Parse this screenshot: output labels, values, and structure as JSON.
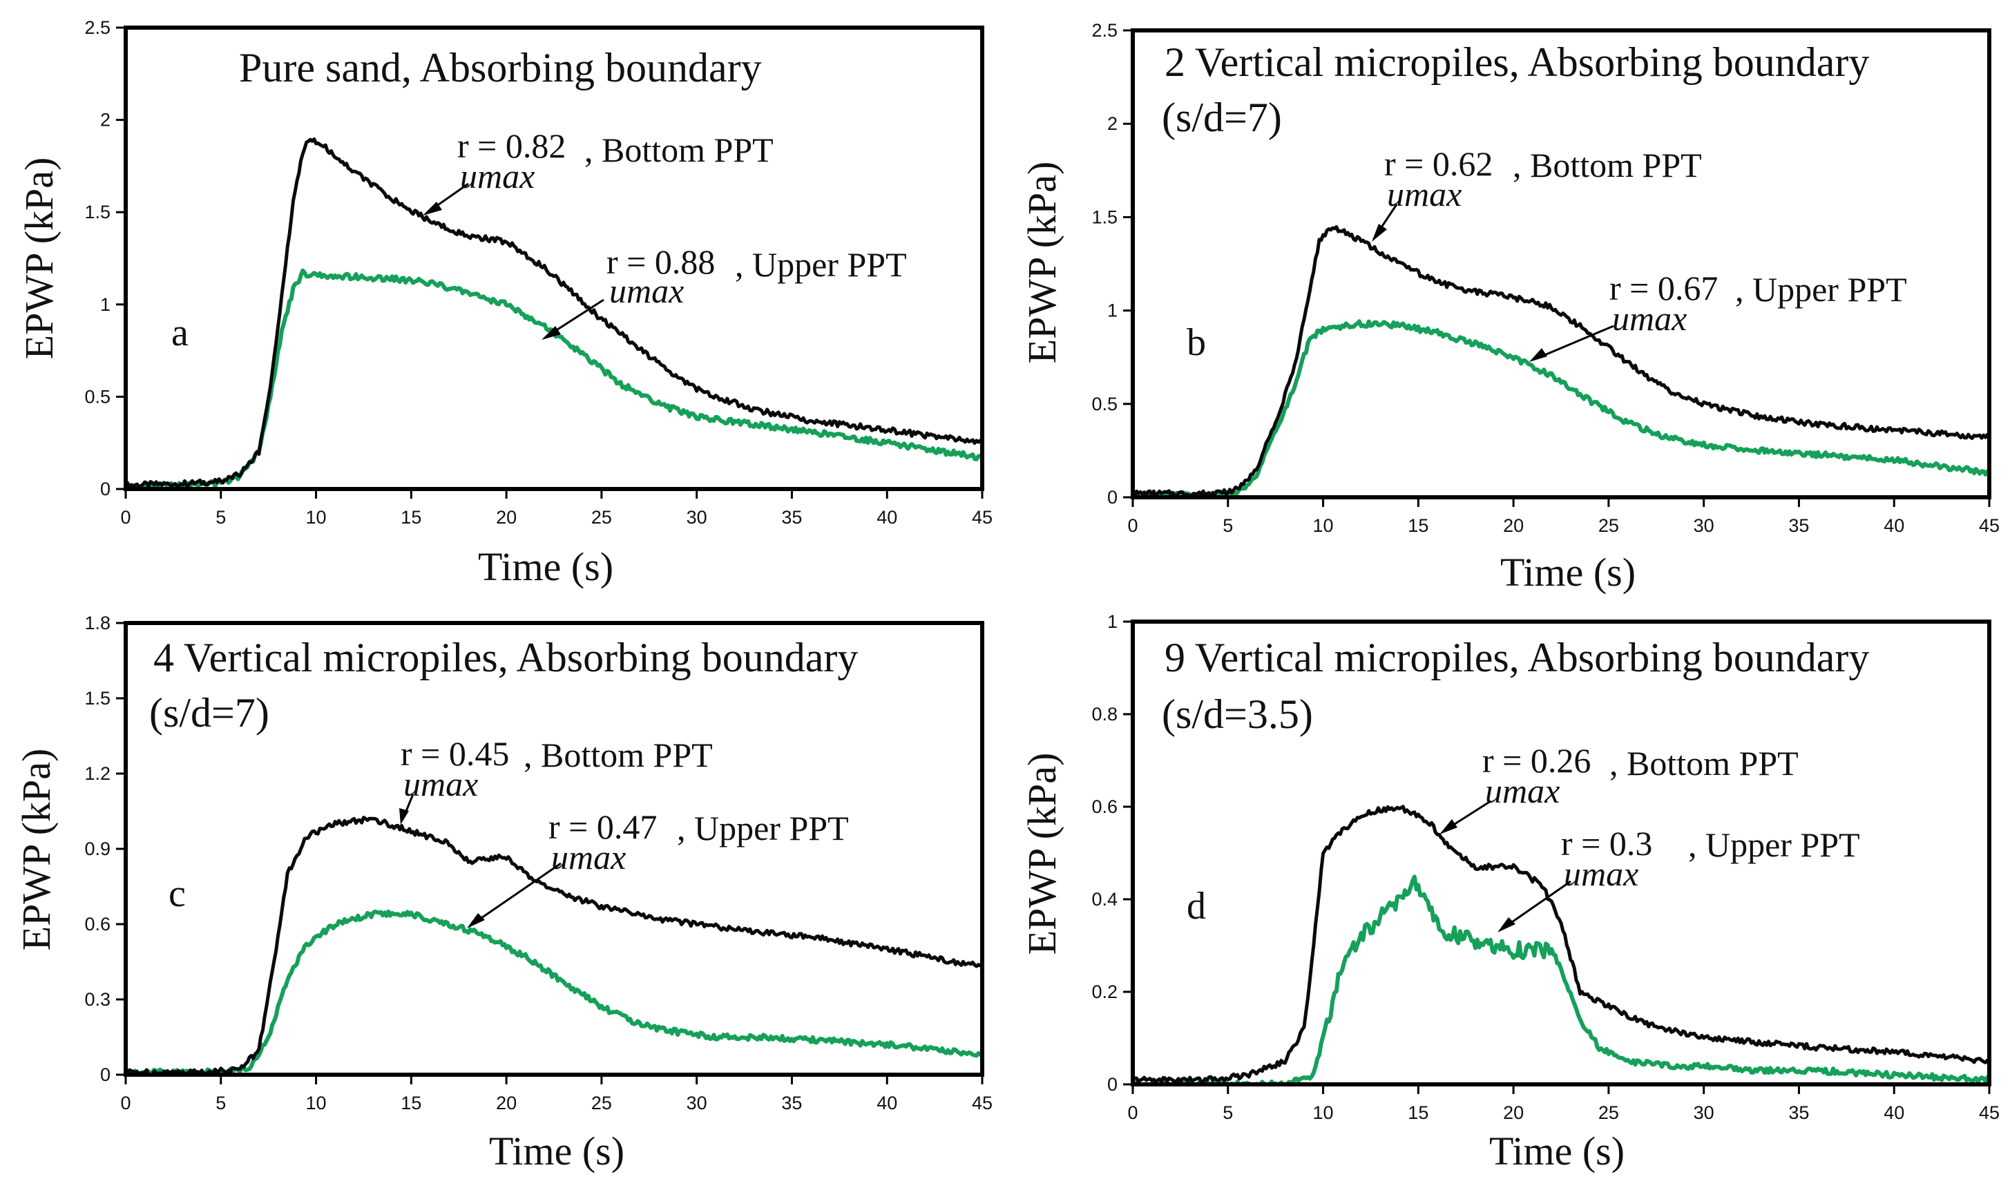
{
  "colors": {
    "bottom_ppt": "#0a0a0a",
    "upper_ppt": "#16a05a",
    "frame": "#000000"
  },
  "chart_data": [
    {
      "id": "a",
      "type": "line",
      "title": "Pure sand, Absorbing boundary",
      "subtitle": "",
      "panel_label": "a",
      "xlabel": "Time (s)",
      "ylabel": "EPWP (kPa)",
      "xlim": [
        0,
        45
      ],
      "ylim": [
        0,
        2.5
      ],
      "xticks": [
        0,
        5,
        10,
        15,
        20,
        25,
        30,
        35,
        40,
        45
      ],
      "yticks": [
        0,
        0.5,
        1,
        1.5,
        2,
        2.5
      ],
      "ytick_labels": [
        "0",
        "0.5",
        "1",
        "1.5",
        "2",
        "2.5"
      ],
      "series": [
        {
          "name": "Bottom PPT",
          "color": "#0a0a0a",
          "x": [
            0,
            3,
            5,
            6,
            7,
            7.6,
            8.2,
            8.8,
            9.3,
            9.7,
            10.5,
            12,
            14,
            16,
            18,
            20,
            22,
            25,
            28,
            30,
            33,
            36,
            40,
            45
          ],
          "y": [
            0.02,
            0.03,
            0.04,
            0.08,
            0.2,
            0.55,
            1.05,
            1.55,
            1.83,
            1.9,
            1.85,
            1.72,
            1.57,
            1.45,
            1.37,
            1.34,
            1.2,
            0.92,
            0.68,
            0.54,
            0.43,
            0.37,
            0.32,
            0.25
          ]
        },
        {
          "name": "Upper PPT",
          "color": "#16a05a",
          "x": [
            0,
            3,
            5,
            6,
            7,
            7.6,
            8.2,
            8.8,
            9.3,
            10,
            12,
            14,
            16,
            18,
            20,
            22,
            24,
            26,
            28,
            30,
            33,
            36,
            40,
            45
          ],
          "y": [
            0.01,
            0.02,
            0.03,
            0.07,
            0.2,
            0.5,
            0.85,
            1.08,
            1.17,
            1.16,
            1.15,
            1.14,
            1.12,
            1.06,
            1.0,
            0.88,
            0.73,
            0.57,
            0.46,
            0.39,
            0.35,
            0.31,
            0.25,
            0.17
          ]
        }
      ],
      "annotations": [
        {
          "value": "r = 0.82",
          "sub": "umax",
          "suffix": ", Bottom PPT"
        },
        {
          "value": "r = 0.88",
          "sub": "umax",
          "suffix": ", Upper PPT"
        }
      ]
    },
    {
      "id": "b",
      "type": "line",
      "title": "2 Vertical micropiles, Absorbing boundary",
      "subtitle": "(s/d=7)",
      "panel_label": "b",
      "xlabel": "Time (s)",
      "ylabel": "EPWP (kPa)",
      "xlim": [
        0,
        45
      ],
      "ylim": [
        0,
        2.5
      ],
      "xticks": [
        0,
        5,
        10,
        15,
        20,
        25,
        30,
        35,
        40,
        45
      ],
      "yticks": [
        0,
        0.5,
        1,
        1.5,
        2,
        2.5
      ],
      "ytick_labels": [
        "0",
        "0.5",
        "1",
        "1.5",
        "2",
        "2.5"
      ],
      "series": [
        {
          "name": "Bottom PPT",
          "color": "#0a0a0a",
          "x": [
            0,
            4,
            5.5,
            6.5,
            7.5,
            8.5,
            9.3,
            9.8,
            10.5,
            12,
            14,
            16,
            18,
            20,
            22,
            24,
            26,
            28,
            30,
            33,
            36,
            40,
            45
          ],
          "y": [
            0.02,
            0.02,
            0.04,
            0.15,
            0.4,
            0.7,
            1.1,
            1.38,
            1.45,
            1.37,
            1.25,
            1.15,
            1.1,
            1.07,
            1.02,
            0.88,
            0.72,
            0.58,
            0.5,
            0.43,
            0.39,
            0.36,
            0.32
          ]
        },
        {
          "name": "Upper PPT",
          "color": "#16a05a",
          "x": [
            0,
            4,
            5.5,
            6.5,
            7.5,
            8.5,
            9.3,
            10,
            12,
            14,
            16,
            18,
            20,
            22,
            24,
            26,
            28,
            30,
            33,
            36,
            40,
            45
          ],
          "y": [
            0.01,
            0.01,
            0.02,
            0.12,
            0.35,
            0.6,
            0.85,
            0.9,
            0.93,
            0.92,
            0.88,
            0.82,
            0.75,
            0.65,
            0.52,
            0.4,
            0.32,
            0.28,
            0.25,
            0.23,
            0.2,
            0.13
          ]
        }
      ],
      "annotations": [
        {
          "value": "r = 0.62",
          "sub": "umax",
          "suffix": ", Bottom PPT"
        },
        {
          "value": "r = 0.67",
          "sub": "umax",
          "suffix": ", Upper PPT"
        }
      ]
    },
    {
      "id": "c",
      "type": "line",
      "title": "4 Vertical micropiles, Absorbing boundary",
      "subtitle": "(s/d=7)",
      "panel_label": "c",
      "xlabel": "Time (s)",
      "ylabel": "EPWP (kPa)",
      "xlim": [
        0,
        45
      ],
      "ylim": [
        0,
        1.8
      ],
      "xticks": [
        0,
        5,
        10,
        15,
        20,
        25,
        30,
        35,
        40,
        45
      ],
      "yticks": [
        0,
        0.3,
        0.6,
        0.9,
        1.2,
        1.5,
        1.8
      ],
      "ytick_labels": [
        "0",
        "0.3",
        "0.6",
        "0.9",
        "1.2",
        "1.5",
        "1.8"
      ],
      "series": [
        {
          "name": "Bottom PPT",
          "color": "#0a0a0a",
          "x": [
            0,
            4,
            6,
            7,
            7.8,
            8.5,
            9.5,
            11,
            13,
            15,
            17,
            18,
            20,
            21,
            23,
            25,
            28,
            30,
            33,
            36,
            40,
            45
          ],
          "y": [
            0.01,
            0.01,
            0.02,
            0.1,
            0.45,
            0.8,
            0.95,
            1.0,
            1.02,
            0.97,
            0.92,
            0.85,
            0.87,
            0.8,
            0.72,
            0.67,
            0.62,
            0.6,
            0.57,
            0.55,
            0.5,
            0.43
          ]
        },
        {
          "name": "Upper PPT",
          "color": "#16a05a",
          "x": [
            0,
            5,
            6.5,
            7.5,
            8.5,
            9.5,
            11,
            13,
            15,
            17,
            19,
            21,
            23,
            25,
            27,
            29,
            31,
            33,
            36,
            40,
            45
          ],
          "y": [
            0.01,
            0.01,
            0.02,
            0.15,
            0.38,
            0.52,
            0.6,
            0.64,
            0.64,
            0.6,
            0.55,
            0.47,
            0.37,
            0.27,
            0.2,
            0.17,
            0.15,
            0.15,
            0.14,
            0.12,
            0.08
          ]
        }
      ],
      "annotations": [
        {
          "value": "r = 0.45",
          "sub": "umax",
          "suffix": ", Bottom PPT"
        },
        {
          "value": "r = 0.47",
          "sub": "umax",
          "suffix": ", Upper PPT"
        }
      ]
    },
    {
      "id": "d",
      "type": "line",
      "title": "9 Vertical micropiles, Absorbing boundary",
      "subtitle": "(s/d=3.5)",
      "panel_label": "d",
      "xlabel": "Time (s)",
      "ylabel": "EPWP (kPa)",
      "xlim": [
        0,
        45
      ],
      "ylim": [
        0,
        1
      ],
      "xticks": [
        0,
        5,
        10,
        15,
        20,
        25,
        30,
        35,
        40,
        45
      ],
      "yticks": [
        0,
        0.2,
        0.4,
        0.6,
        0.8,
        1
      ],
      "ytick_labels": [
        "0",
        "0.2",
        "0.4",
        "0.6",
        "0.8",
        "1"
      ],
      "series": [
        {
          "name": "Bottom PPT",
          "color": "#0a0a0a",
          "x": [
            0,
            4,
            6,
            8,
            9,
            9.5,
            10,
            11,
            12.5,
            14,
            15.5,
            16.5,
            18,
            20,
            21.5,
            22.5,
            23.5,
            25,
            27,
            30,
            33,
            36,
            40,
            45
          ],
          "y": [
            0.01,
            0.01,
            0.02,
            0.05,
            0.12,
            0.3,
            0.5,
            0.55,
            0.59,
            0.6,
            0.57,
            0.52,
            0.47,
            0.47,
            0.43,
            0.35,
            0.2,
            0.17,
            0.13,
            0.1,
            0.09,
            0.08,
            0.07,
            0.05
          ]
        },
        {
          "name": "Upper PPT",
          "color": "#16a05a",
          "x": [
            0,
            5,
            8,
            9.5,
            10.3,
            11,
            12,
            13,
            14,
            14.7,
            15.5,
            16.5,
            18,
            20,
            22,
            22.5,
            23.5,
            24.5,
            26,
            28,
            30,
            33,
            36,
            40,
            45
          ],
          "y": [
            0.0,
            0.0,
            0.0,
            0.02,
            0.15,
            0.25,
            0.32,
            0.36,
            0.4,
            0.44,
            0.38,
            0.33,
            0.31,
            0.29,
            0.29,
            0.25,
            0.14,
            0.08,
            0.05,
            0.04,
            0.04,
            0.03,
            0.03,
            0.02,
            0.01
          ]
        }
      ],
      "annotations": [
        {
          "value": "r = 0.26",
          "sub": "umax",
          "suffix": ", Bottom PPT"
        },
        {
          "value": "r = 0.3",
          "sub": "umax",
          "suffix": ", Upper PPT"
        }
      ]
    }
  ]
}
